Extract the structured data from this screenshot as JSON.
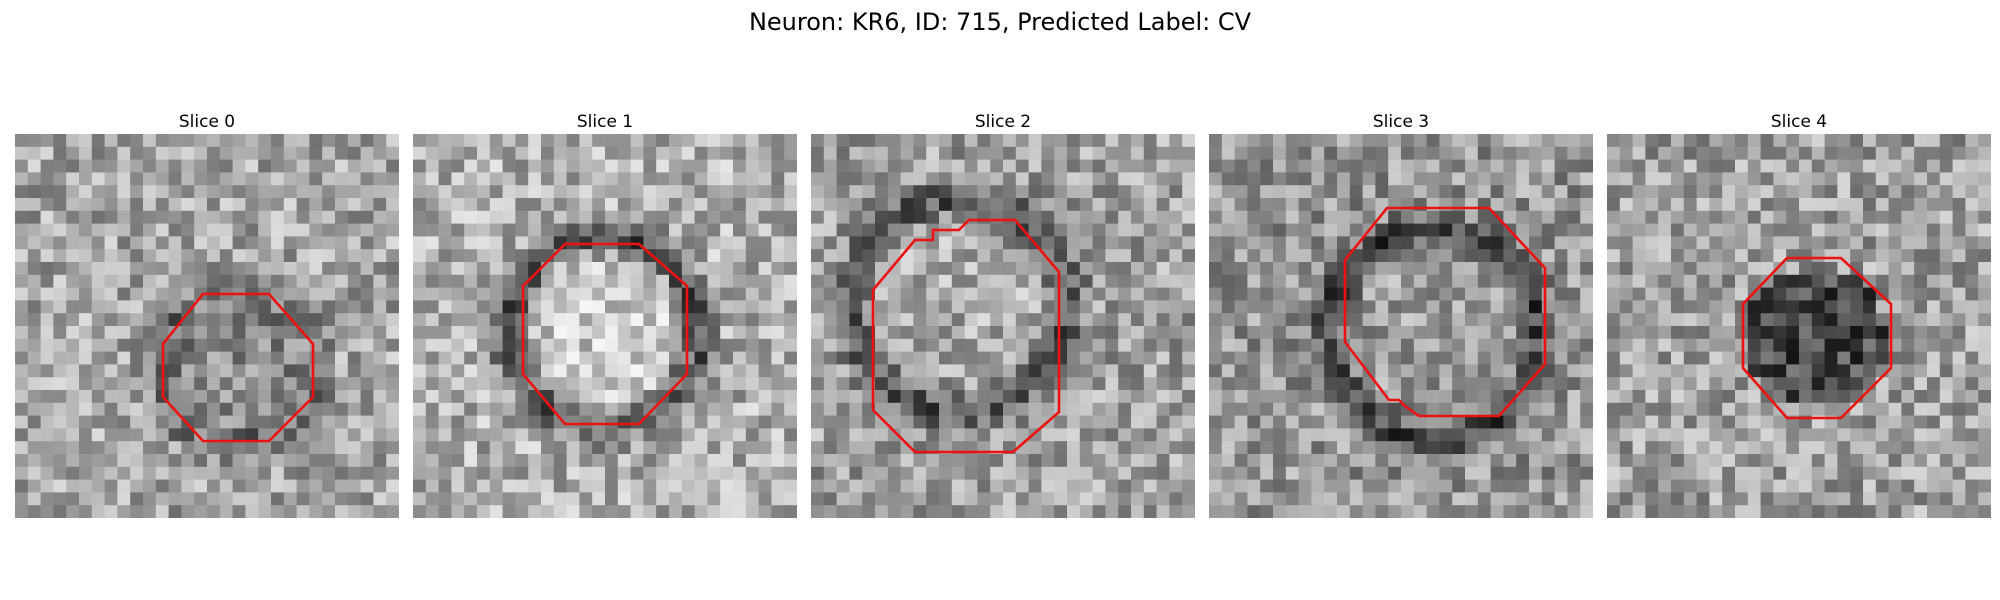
{
  "figure": {
    "title": "Neuron: KR6, ID: 715, Predicted Label: CV"
  },
  "panels": [
    {
      "title": "Slice 0",
      "seed": 11,
      "base": 165,
      "ring": "dark",
      "ring_strength": 55,
      "center_delta": -30
    },
    {
      "title": "Slice 1",
      "seed": 23,
      "base": 175,
      "ring": "dark",
      "ring_strength": 90,
      "center_delta": 25
    },
    {
      "title": "Slice 2",
      "seed": 37,
      "base": 160,
      "ring": "dark",
      "ring_strength": 75,
      "center_delta": 10
    },
    {
      "title": "Slice 3",
      "seed": 51,
      "base": 150,
      "ring": "dark",
      "ring_strength": 80,
      "center_delta": 5
    },
    {
      "title": "Slice 4",
      "seed": 67,
      "base": 160,
      "ring": "none",
      "ring_strength": 0,
      "center_delta": -85
    }
  ],
  "colors": {
    "contour": "#ee1111"
  }
}
